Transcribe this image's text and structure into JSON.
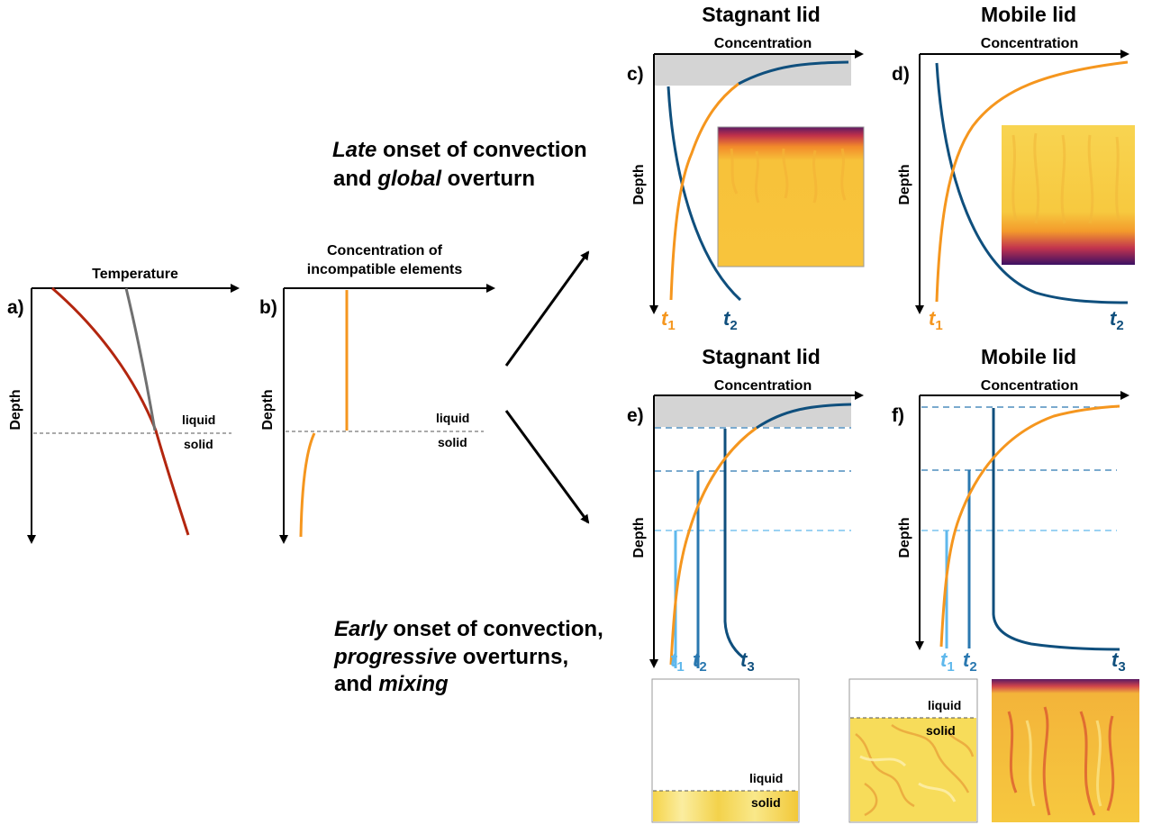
{
  "panels": {
    "a": {
      "letter": "a)",
      "x_label": "Temperature",
      "y_label": "Depth",
      "liquid_label": "liquid",
      "solid_label": "solid",
      "colors": {
        "red_curve": "#b3260f",
        "gray_curve": "#707070"
      }
    },
    "b": {
      "letter": "b)",
      "x_label_line1": "Concentration of",
      "x_label_line2": "incompatible elements",
      "y_label": "Depth",
      "liquid_label": "liquid",
      "solid_label": "solid",
      "colors": {
        "curve": "#f5961e"
      }
    },
    "c": {
      "letter": "c)",
      "title": "Stagnant lid",
      "x_label": "Concentration",
      "y_label": "Depth",
      "t1_base": "t",
      "t1_sub": "1",
      "t2_base": "t",
      "t2_sub": "2"
    },
    "d": {
      "letter": "d)",
      "title": "Mobile lid",
      "x_label": "Concentration",
      "y_label": "Depth",
      "t1_base": "t",
      "t1_sub": "1",
      "t2_base": "t",
      "t2_sub": "2"
    },
    "e": {
      "letter": "e)",
      "title": "Stagnant lid",
      "x_label": "Concentration",
      "y_label": "Depth",
      "t1_base": "t",
      "t1_sub": "1",
      "t2_base": "t",
      "t2_sub": "2",
      "t3_base": "t",
      "t3_sub": "3"
    },
    "f": {
      "letter": "f)",
      "title": "Mobile lid",
      "x_label": "Concentration",
      "y_label": "Depth",
      "t1_base": "t",
      "t1_sub": "1",
      "t2_base": "t",
      "t2_sub": "2",
      "t3_base": "t",
      "t3_sub": "3"
    }
  },
  "late_text": {
    "line1_em": "Late",
    "line1_rest": " onset of convection",
    "line2_pre": "and ",
    "line2_em": "global",
    "line2_rest": " overturn"
  },
  "early_text": {
    "line1_em": "Early",
    "line1_rest": " onset of convection,",
    "line2_em": "progressive",
    "line2_rest": " overturns,",
    "line3_pre": "and ",
    "line3_em": "mixing"
  },
  "snapshots": {
    "snap1_liquid": "liquid",
    "snap1_solid": "solid",
    "snap2_liquid": "liquid",
    "snap2_solid": "solid"
  },
  "colors": {
    "orange": "#f5961e",
    "dark_blue": "#0f4f7d",
    "mid_blue": "#2a78b0",
    "light_blue": "#5fb8ec",
    "lid_gray": "#d4d4d4",
    "axis": "#000000"
  }
}
